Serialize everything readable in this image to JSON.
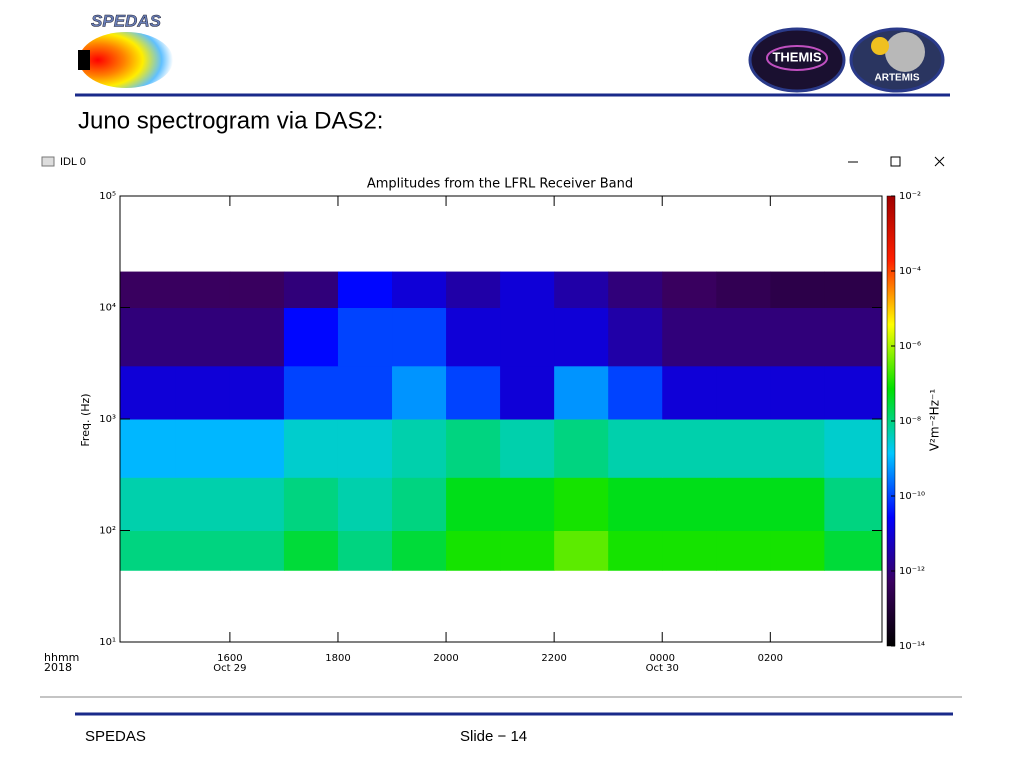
{
  "slide": {
    "heading": "Juno spectrogram via DAS2:",
    "footer_left": "SPEDAS",
    "footer_right": "Slide − 14",
    "logos": [
      "SPEDAS",
      "THEMIS",
      "ARTEMIS"
    ]
  },
  "window": {
    "title": "IDL 0"
  },
  "chart_data": {
    "type": "heatmap",
    "title": "Amplitudes from the LFRL Receiver Band",
    "y_label": "Freq. (Hz)",
    "x_label": "hhmm",
    "x_year": "2018",
    "xlim": [
      "2018-10-29T13:58",
      "2018-10-30T04:04"
    ],
    "xticks": [
      {
        "value": "2018-10-29T16:00",
        "label": "1600"
      },
      {
        "value": "2018-10-29T18:00",
        "label": "1800"
      },
      {
        "value": "2018-10-29T20:00",
        "label": "2000"
      },
      {
        "value": "2018-10-29T22:00",
        "label": "2200"
      },
      {
        "value": "2018-10-30T00:00",
        "label": "0000"
      },
      {
        "value": "2018-10-30T02:00",
        "label": "0200"
      }
    ],
    "x_date_labels": [
      {
        "value": "2018-10-29T16:00",
        "label": "Oct 29"
      },
      {
        "value": "2018-10-30T00:00",
        "label": "Oct 30"
      }
    ],
    "ylog": true,
    "ylim": [
      10,
      100000
    ],
    "yticks": [
      {
        "value": 10,
        "label": "10¹"
      },
      {
        "value": 100,
        "label": "10²"
      },
      {
        "value": 1000,
        "label": "10³"
      },
      {
        "value": 10000,
        "label": "10⁴"
      },
      {
        "value": 100000,
        "label": "10⁵"
      }
    ],
    "x_bins": [
      "2018-10-29T13:58",
      "2018-10-29T15:00",
      "2018-10-29T16:00",
      "2018-10-29T17:00",
      "2018-10-29T18:00",
      "2018-10-29T19:00",
      "2018-10-29T20:00",
      "2018-10-29T21:00",
      "2018-10-29T22:00",
      "2018-10-29T23:00",
      "2018-10-30T00:00",
      "2018-10-30T01:00",
      "2018-10-30T02:00",
      "2018-10-30T03:00",
      "2018-10-30T04:04"
    ],
    "y_bins": [
      44,
      100,
      300,
      1000,
      3000,
      10000,
      21000
    ],
    "z": [
      [
        1e-08,
        1e-08,
        1e-08,
        3e-08,
        1e-08,
        3e-08,
        1e-07,
        1e-07,
        3e-07,
        1e-07,
        1e-07,
        1e-07,
        1e-07,
        3e-08
      ],
      [
        5e-09,
        5e-09,
        5e-09,
        1e-08,
        5e-09,
        1e-08,
        5e-08,
        5e-08,
        1e-07,
        5e-08,
        5e-08,
        5e-08,
        5e-08,
        1e-08
      ],
      [
        1e-09,
        1e-09,
        1e-09,
        3e-09,
        3e-09,
        5e-09,
        1e-08,
        5e-09,
        1e-08,
        5e-09,
        5e-09,
        5e-09,
        5e-09,
        3e-09
      ],
      [
        1e-11,
        1e-11,
        1e-11,
        1e-10,
        1e-10,
        5e-10,
        1e-10,
        1e-11,
        5e-10,
        1e-10,
        1e-11,
        1e-11,
        1e-11,
        1e-11
      ],
      [
        1e-12,
        1e-12,
        1e-12,
        3e-11,
        1e-10,
        1e-10,
        1e-11,
        1e-11,
        1e-11,
        3e-12,
        1e-12,
        1e-12,
        1e-12,
        1e-12
      ],
      [
        5e-13,
        5e-13,
        5e-13,
        1e-12,
        3e-11,
        1e-11,
        3e-12,
        1e-11,
        3e-12,
        1e-12,
        5e-13,
        3e-13,
        2e-13,
        2e-13
      ]
    ],
    "zlog": true,
    "zlim": [
      1e-14,
      0.01
    ],
    "zticks": [
      {
        "value": 0.01,
        "label": "10⁻²"
      },
      {
        "value": 0.0001,
        "label": "10⁻⁴"
      },
      {
        "value": 1e-06,
        "label": "10⁻⁶"
      },
      {
        "value": 1e-08,
        "label": "10⁻⁸"
      },
      {
        "value": 1e-10,
        "label": "10⁻¹⁰"
      },
      {
        "value": 1e-12,
        "label": "10⁻¹²"
      },
      {
        "value": 1e-14,
        "label": "10⁻¹⁴"
      }
    ],
    "z_label": "V²m⁻²Hz⁻¹",
    "colormap": [
      "#000000",
      "#3a0060",
      "#0000ff",
      "#00c8ff",
      "#00e000",
      "#ffff00",
      "#ff2000",
      "#a00000"
    ]
  }
}
